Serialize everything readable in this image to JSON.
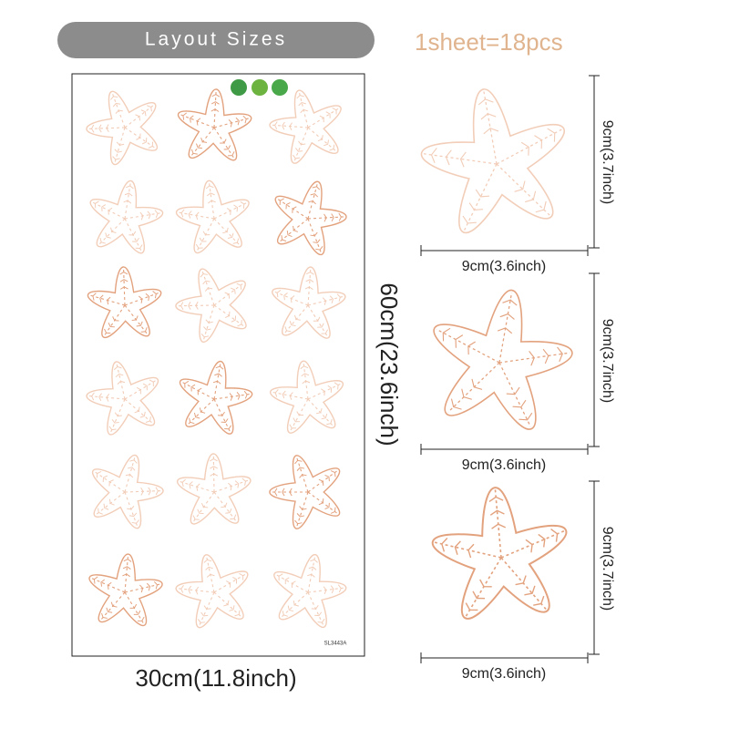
{
  "header": {
    "title": "Layout Sizes",
    "quantity": "1sheet=18pcs"
  },
  "sheet": {
    "height": "60cm(23.6inch)",
    "width": "30cm(11.8inch)",
    "code": "SL3443A"
  },
  "details": [
    {
      "height": "9cm(3.7inch)",
      "width": "9cm(3.6inch)"
    },
    {
      "height": "9cm(3.7inch)",
      "width": "9cm(3.6inch)"
    },
    {
      "height": "9cm(3.7inch)",
      "width": "9cm(3.6inch)"
    }
  ]
}
